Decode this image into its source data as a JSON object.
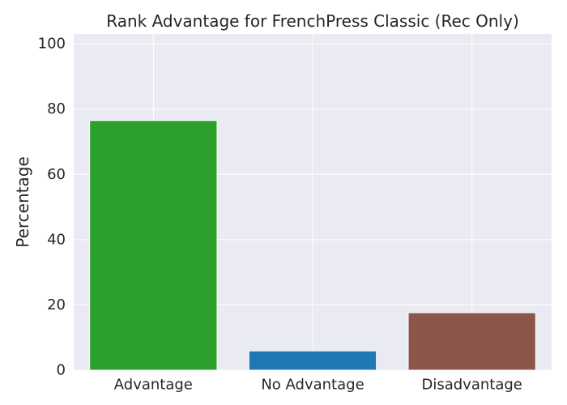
{
  "chart_data": {
    "type": "bar",
    "title": "Rank Advantage for FrenchPress Classic (Rec Only)",
    "xlabel": "",
    "ylabel": "Percentage",
    "categories": [
      "Advantage",
      "No Advantage",
      "Disadvantage"
    ],
    "values": [
      76.5,
      5.9,
      17.6
    ],
    "colors": [
      "#2ca02c",
      "#1f77b4",
      "#8c564b"
    ],
    "ylim": [
      0,
      103
    ],
    "yticks": [
      0,
      20,
      40,
      60,
      80,
      100
    ],
    "grid": true,
    "legend": "none",
    "style": {
      "background": "#eaeaf2",
      "grid_color": "#ffffff"
    }
  }
}
